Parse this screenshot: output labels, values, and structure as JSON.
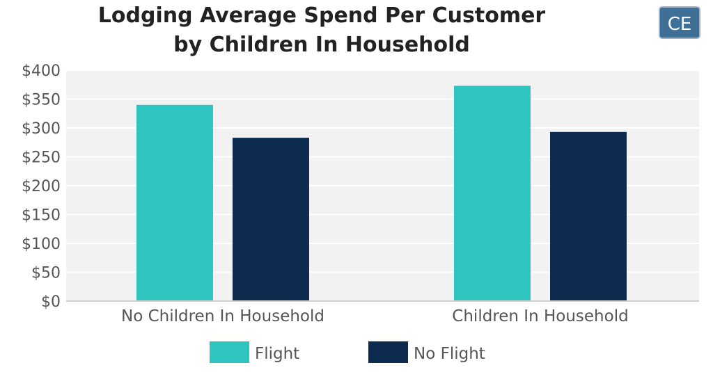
{
  "logo": {
    "text": "CE",
    "bg_color": "#3d6f97",
    "border_color": "#9fb4c7"
  },
  "chart_data": {
    "type": "bar",
    "title_lines": [
      "Lodging Average Spend Per Customer",
      "by Children In Household"
    ],
    "xlabel": "",
    "ylabel": "",
    "categories": [
      "No Children In Household",
      "Children In Household"
    ],
    "series": [
      {
        "name": "Flight",
        "values": [
          340,
          373
        ],
        "color": "#2ec4bf"
      },
      {
        "name": "No Flight",
        "values": [
          283,
          293
        ],
        "color": "#0d2b4e"
      }
    ],
    "ylim": [
      0,
      400
    ],
    "yticks": [
      0,
      50,
      100,
      150,
      200,
      250,
      300,
      350,
      400
    ],
    "ytick_labels": [
      "$0",
      "$50",
      "$100",
      "$150",
      "$200",
      "$250",
      "$300",
      "$350",
      "$400"
    ],
    "grid": true,
    "plot_background": "#f2f2f2",
    "grid_color": "#ffffff",
    "legend_position": "bottom"
  }
}
